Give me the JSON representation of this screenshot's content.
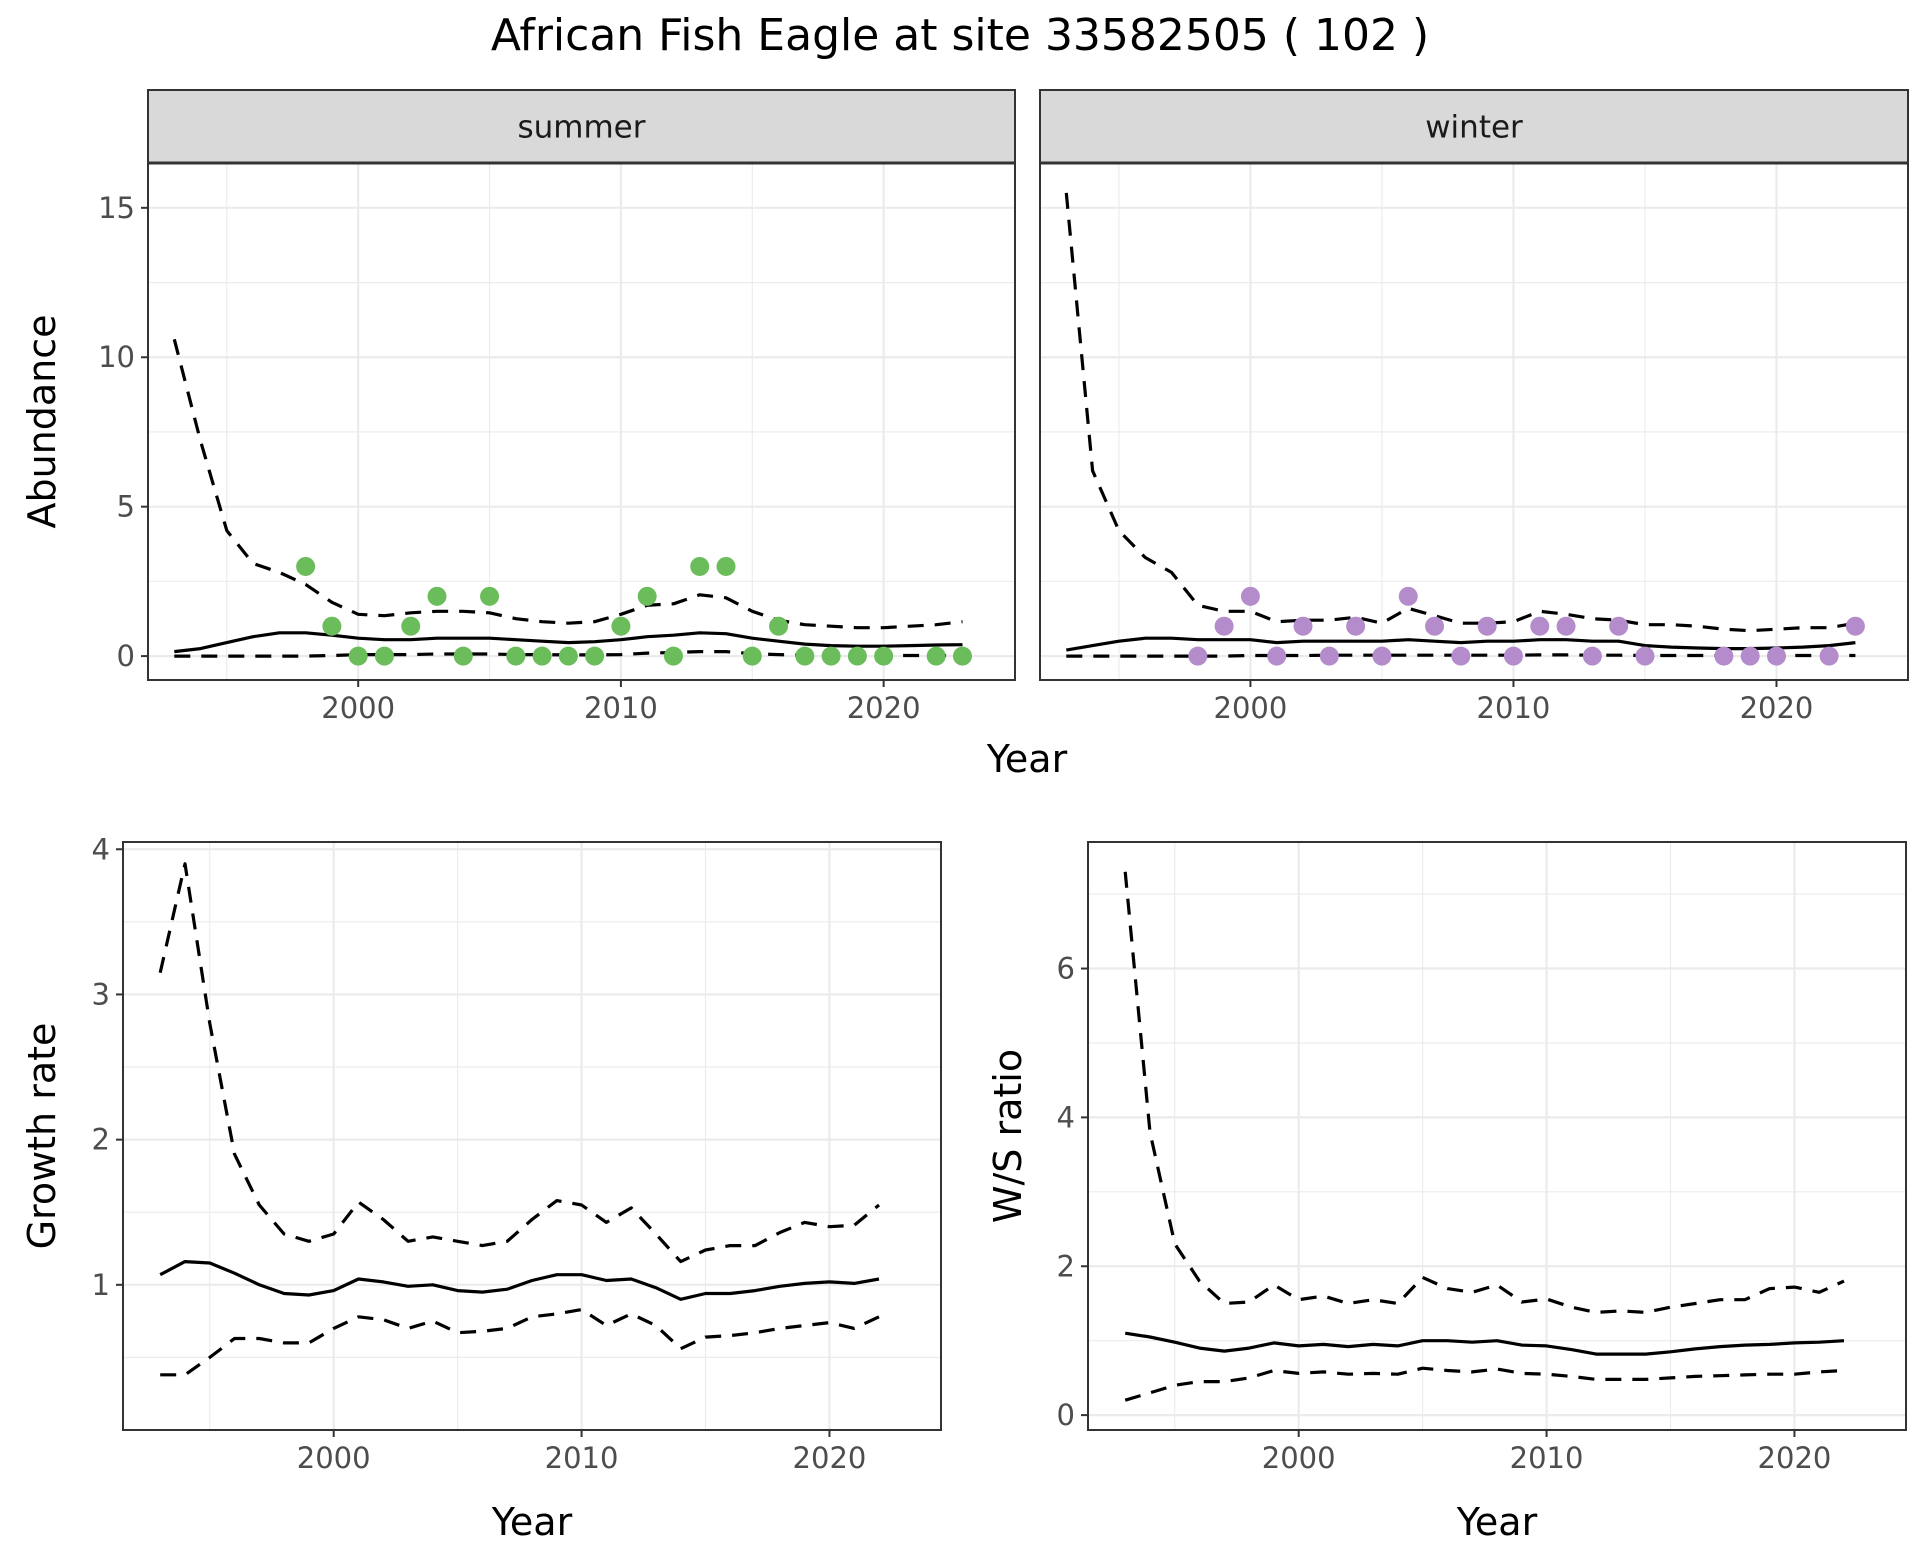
{
  "title": "African Fish Eagle at site 33582505 ( 102 )",
  "colors": {
    "summer_points": "#6bbd5b",
    "winter_points": "#b48ccb",
    "lines": "#000000",
    "strip": "#d9d9d9"
  },
  "chart_data": [
    {
      "id": "abundance-summer",
      "type": "line",
      "strip": "summer",
      "ylabel": "Abundance",
      "xlabel": "Year",
      "xlim": [
        1992,
        2025
      ],
      "ylim": [
        -0.8,
        16.5
      ],
      "xticks": [
        2000,
        2010,
        2020
      ],
      "yticks": [
        0,
        5,
        10,
        15
      ],
      "series": [
        {
          "style": "solid",
          "x": [
            1993,
            1994,
            1995,
            1996,
            1997,
            1998,
            1999,
            2000,
            2001,
            2002,
            2003,
            2004,
            2005,
            2006,
            2007,
            2008,
            2009,
            2010,
            2011,
            2012,
            2013,
            2014,
            2015,
            2016,
            2017,
            2018,
            2019,
            2020,
            2021,
            2022,
            2023
          ],
          "values": [
            0.15,
            0.25,
            0.45,
            0.65,
            0.78,
            0.78,
            0.7,
            0.6,
            0.55,
            0.55,
            0.6,
            0.6,
            0.6,
            0.55,
            0.5,
            0.45,
            0.48,
            0.55,
            0.65,
            0.7,
            0.78,
            0.75,
            0.6,
            0.5,
            0.4,
            0.35,
            0.33,
            0.33,
            0.35,
            0.37,
            0.38
          ]
        },
        {
          "style": "dashed",
          "x": [
            1993,
            1994,
            1995,
            1996,
            1997,
            1998,
            1999,
            2000,
            2001,
            2002,
            2003,
            2004,
            2005,
            2006,
            2007,
            2008,
            2009,
            2010,
            2011,
            2012,
            2013,
            2014,
            2015,
            2016,
            2017,
            2018,
            2019,
            2020,
            2021,
            2022,
            2023
          ],
          "values": [
            10.6,
            7.2,
            4.2,
            3.1,
            2.8,
            2.4,
            1.8,
            1.4,
            1.35,
            1.45,
            1.5,
            1.5,
            1.45,
            1.25,
            1.15,
            1.1,
            1.15,
            1.4,
            1.7,
            1.75,
            2.05,
            1.95,
            1.5,
            1.2,
            1.05,
            1.0,
            0.95,
            0.95,
            1.0,
            1.05,
            1.15
          ]
        },
        {
          "style": "dashed",
          "x": [
            1993,
            1994,
            1995,
            1996,
            1997,
            1998,
            1999,
            2000,
            2001,
            2002,
            2003,
            2004,
            2005,
            2006,
            2007,
            2008,
            2009,
            2010,
            2011,
            2012,
            2013,
            2014,
            2015,
            2016,
            2017,
            2018,
            2019,
            2020,
            2021,
            2022,
            2023
          ],
          "values": [
            0.0,
            0.0,
            0.0,
            0.0,
            0.0,
            0.0,
            0.02,
            0.05,
            0.05,
            0.05,
            0.07,
            0.07,
            0.07,
            0.05,
            0.05,
            0.04,
            0.04,
            0.05,
            0.1,
            0.12,
            0.15,
            0.15,
            0.08,
            0.05,
            0.03,
            0.02,
            0.02,
            0.02,
            0.02,
            0.02,
            0.02
          ]
        },
        {
          "style": "points",
          "x": [
            1998,
            1999,
            2000,
            2001,
            2002,
            2003,
            2004,
            2005,
            2006,
            2007,
            2008,
            2009,
            2010,
            2011,
            2012,
            2013,
            2014,
            2015,
            2016,
            2017,
            2018,
            2019,
            2020,
            2022,
            2023
          ],
          "values": [
            3,
            1,
            0,
            0,
            1,
            2,
            0,
            2,
            0,
            0,
            0,
            0,
            1,
            2,
            0,
            3,
            3,
            0,
            1,
            0,
            0,
            0,
            0,
            0,
            0
          ]
        }
      ]
    },
    {
      "id": "abundance-winter",
      "type": "line",
      "strip": "winter",
      "ylabel": "",
      "xlabel": "",
      "xlim": [
        1992,
        2025
      ],
      "ylim": [
        -0.8,
        16.5
      ],
      "xticks": [
        2000,
        2010,
        2020
      ],
      "yticks": [],
      "series": [
        {
          "style": "solid",
          "x": [
            1993,
            1994,
            1995,
            1996,
            1997,
            1998,
            1999,
            2000,
            2001,
            2002,
            2003,
            2004,
            2005,
            2006,
            2007,
            2008,
            2009,
            2010,
            2011,
            2012,
            2013,
            2014,
            2015,
            2016,
            2017,
            2018,
            2019,
            2020,
            2021,
            2022,
            2023
          ],
          "values": [
            0.2,
            0.35,
            0.5,
            0.6,
            0.6,
            0.55,
            0.55,
            0.55,
            0.45,
            0.5,
            0.5,
            0.5,
            0.5,
            0.55,
            0.5,
            0.45,
            0.5,
            0.5,
            0.55,
            0.55,
            0.5,
            0.5,
            0.35,
            0.3,
            0.27,
            0.25,
            0.25,
            0.27,
            0.3,
            0.35,
            0.45
          ]
        },
        {
          "style": "dashed",
          "x": [
            1993,
            1994,
            1995,
            1996,
            1997,
            1998,
            1999,
            2000,
            2001,
            2002,
            2003,
            2004,
            2005,
            2006,
            2007,
            2008,
            2009,
            2010,
            2011,
            2012,
            2013,
            2014,
            2015,
            2016,
            2017,
            2018,
            2019,
            2020,
            2021,
            2022,
            2023
          ],
          "values": [
            15.5,
            6.2,
            4.2,
            3.3,
            2.8,
            1.7,
            1.5,
            1.5,
            1.15,
            1.2,
            1.2,
            1.3,
            1.1,
            1.6,
            1.35,
            1.1,
            1.1,
            1.15,
            1.5,
            1.4,
            1.25,
            1.2,
            1.05,
            1.05,
            1.0,
            0.9,
            0.85,
            0.9,
            0.95,
            0.95,
            1.1
          ]
        },
        {
          "style": "dashed",
          "x": [
            1993,
            1994,
            1995,
            1996,
            1997,
            1998,
            1999,
            2000,
            2001,
            2002,
            2003,
            2004,
            2005,
            2006,
            2007,
            2008,
            2009,
            2010,
            2011,
            2012,
            2013,
            2014,
            2015,
            2016,
            2017,
            2018,
            2019,
            2020,
            2021,
            2022,
            2023
          ],
          "values": [
            0.0,
            0.0,
            0.0,
            0.0,
            0.0,
            0.0,
            0.0,
            0.02,
            0.02,
            0.02,
            0.03,
            0.03,
            0.03,
            0.03,
            0.03,
            0.03,
            0.03,
            0.03,
            0.04,
            0.04,
            0.03,
            0.03,
            0.02,
            0.02,
            0.02,
            0.02,
            0.02,
            0.02,
            0.02,
            0.02,
            0.02
          ]
        },
        {
          "style": "points",
          "x": [
            1998,
            1999,
            2000,
            2001,
            2002,
            2003,
            2004,
            2005,
            2006,
            2007,
            2008,
            2009,
            2010,
            2011,
            2012,
            2013,
            2014,
            2015,
            2018,
            2019,
            2020,
            2022,
            2023
          ],
          "values": [
            0,
            1,
            2,
            0,
            1,
            0,
            1,
            0,
            2,
            1,
            0,
            1,
            0,
            1,
            1,
            0,
            1,
            0,
            0,
            0,
            0,
            0,
            1
          ]
        }
      ]
    },
    {
      "id": "growth-rate",
      "type": "line",
      "ylabel": "Growth rate",
      "xlabel": "Year",
      "xlim": [
        1991.5,
        2024.5
      ],
      "ylim": [
        0.0,
        4.05
      ],
      "xticks": [
        2000,
        2010,
        2020
      ],
      "yticks": [
        1,
        2,
        3,
        4
      ],
      "series": [
        {
          "style": "solid",
          "x": [
            1993,
            1994,
            1995,
            1996,
            1997,
            1998,
            1999,
            2000,
            2001,
            2002,
            2003,
            2004,
            2005,
            2006,
            2007,
            2008,
            2009,
            2010,
            2011,
            2012,
            2013,
            2014,
            2015,
            2016,
            2017,
            2018,
            2019,
            2020,
            2021,
            2022
          ],
          "values": [
            1.07,
            1.16,
            1.15,
            1.08,
            1.0,
            0.94,
            0.93,
            0.96,
            1.04,
            1.02,
            0.99,
            1.0,
            0.96,
            0.95,
            0.97,
            1.03,
            1.07,
            1.07,
            1.03,
            1.04,
            0.98,
            0.9,
            0.94,
            0.94,
            0.96,
            0.99,
            1.01,
            1.02,
            1.01,
            1.04
          ]
        },
        {
          "style": "dashed",
          "x": [
            1993,
            1994,
            1995,
            1996,
            1997,
            1998,
            1999,
            2000,
            2001,
            2002,
            2003,
            2004,
            2005,
            2006,
            2007,
            2008,
            2009,
            2010,
            2011,
            2012,
            2013,
            2014,
            2015,
            2016,
            2017,
            2018,
            2019,
            2020,
            2021,
            2022
          ],
          "values": [
            3.15,
            3.9,
            2.8,
            1.9,
            1.55,
            1.35,
            1.3,
            1.35,
            1.57,
            1.45,
            1.3,
            1.33,
            1.3,
            1.27,
            1.3,
            1.45,
            1.58,
            1.55,
            1.43,
            1.53,
            1.35,
            1.16,
            1.24,
            1.27,
            1.27,
            1.36,
            1.43,
            1.4,
            1.41,
            1.55
          ]
        },
        {
          "style": "dashed",
          "x": [
            1993,
            1994,
            1995,
            1996,
            1997,
            1998,
            1999,
            2000,
            2001,
            2002,
            2003,
            2004,
            2005,
            2006,
            2007,
            2008,
            2009,
            2010,
            2011,
            2012,
            2013,
            2014,
            2015,
            2016,
            2017,
            2018,
            2019,
            2020,
            2021,
            2022
          ],
          "values": [
            0.38,
            0.38,
            0.5,
            0.63,
            0.63,
            0.6,
            0.6,
            0.7,
            0.78,
            0.76,
            0.7,
            0.75,
            0.67,
            0.68,
            0.7,
            0.78,
            0.8,
            0.83,
            0.72,
            0.8,
            0.72,
            0.56,
            0.64,
            0.65,
            0.67,
            0.7,
            0.72,
            0.74,
            0.7,
            0.78
          ]
        }
      ]
    },
    {
      "id": "ws-ratio",
      "type": "line",
      "ylabel": "W/S ratio",
      "xlabel": "Year",
      "xlim": [
        1991.5,
        2024.5
      ],
      "ylim": [
        -0.2,
        7.7
      ],
      "xticks": [
        2000,
        2010,
        2020
      ],
      "yticks": [
        0,
        2,
        4,
        6
      ],
      "series": [
        {
          "style": "solid",
          "x": [
            1993,
            1994,
            1995,
            1996,
            1997,
            1998,
            1999,
            2000,
            2001,
            2002,
            2003,
            2004,
            2005,
            2006,
            2007,
            2008,
            2009,
            2010,
            2011,
            2012,
            2013,
            2014,
            2015,
            2016,
            2017,
            2018,
            2019,
            2020,
            2021,
            2022
          ],
          "values": [
            1.1,
            1.05,
            0.98,
            0.9,
            0.86,
            0.9,
            0.97,
            0.93,
            0.95,
            0.92,
            0.95,
            0.93,
            1.0,
            1.0,
            0.98,
            1.0,
            0.94,
            0.93,
            0.88,
            0.82,
            0.82,
            0.82,
            0.85,
            0.89,
            0.92,
            0.94,
            0.95,
            0.97,
            0.98,
            1.0
          ]
        },
        {
          "style": "dashed",
          "x": [
            1993,
            1994,
            1995,
            1996,
            1997,
            1998,
            1999,
            2000,
            2001,
            2002,
            2003,
            2004,
            2005,
            2006,
            2007,
            2008,
            2009,
            2010,
            2011,
            2012,
            2013,
            2014,
            2015,
            2016,
            2017,
            2018,
            2019,
            2020,
            2021,
            2022
          ],
          "values": [
            7.3,
            3.8,
            2.3,
            1.8,
            1.5,
            1.52,
            1.75,
            1.55,
            1.6,
            1.5,
            1.55,
            1.5,
            1.85,
            1.7,
            1.65,
            1.75,
            1.52,
            1.56,
            1.45,
            1.38,
            1.4,
            1.38,
            1.45,
            1.5,
            1.55,
            1.55,
            1.7,
            1.72,
            1.65,
            1.8
          ]
        },
        {
          "style": "dashed",
          "x": [
            1993,
            1994,
            1995,
            1996,
            1997,
            1998,
            1999,
            2000,
            2001,
            2002,
            2003,
            2004,
            2005,
            2006,
            2007,
            2008,
            2009,
            2010,
            2011,
            2012,
            2013,
            2014,
            2015,
            2016,
            2017,
            2018,
            2019,
            2020,
            2021,
            2022
          ],
          "values": [
            0.2,
            0.3,
            0.4,
            0.45,
            0.45,
            0.5,
            0.6,
            0.56,
            0.58,
            0.55,
            0.56,
            0.55,
            0.63,
            0.6,
            0.58,
            0.62,
            0.56,
            0.55,
            0.52,
            0.48,
            0.48,
            0.48,
            0.5,
            0.52,
            0.53,
            0.54,
            0.55,
            0.55,
            0.58,
            0.6
          ]
        }
      ]
    }
  ]
}
